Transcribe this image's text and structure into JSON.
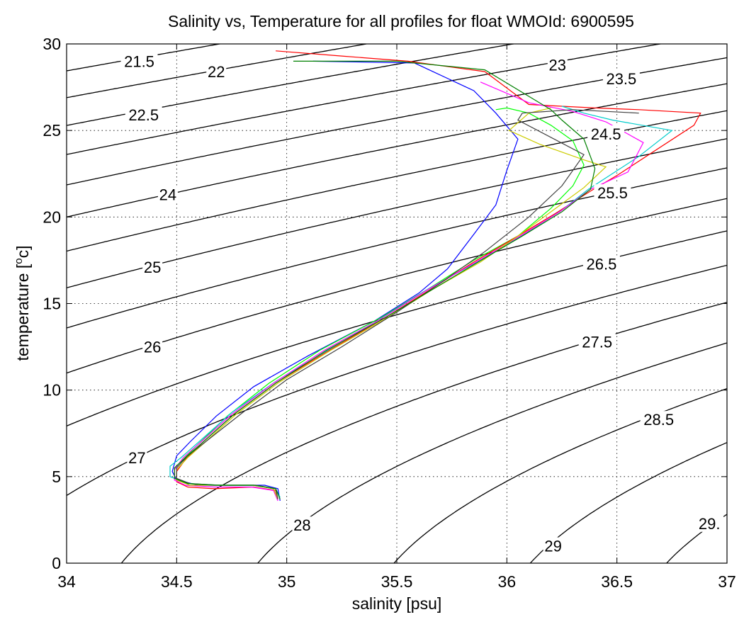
{
  "chart_data": {
    "type": "line",
    "title": "Salinity vs, Temperature for all profiles for float WMOId: 6900595",
    "xlabel": "salinity [psu]",
    "ylabel_main": "temperature [",
    "ylabel_sup": "o",
    "ylabel_end": "c]",
    "xlim": [
      34,
      37
    ],
    "ylim": [
      0,
      30
    ],
    "xticks": [
      34,
      34.5,
      35,
      35.5,
      36,
      36.5,
      37
    ],
    "xtick_labels": [
      "34",
      "34.5",
      "35",
      "35.5",
      "36",
      "36.5",
      "37"
    ],
    "yticks": [
      0,
      5,
      10,
      15,
      20,
      25,
      30
    ],
    "ytick_labels": [
      "0",
      "5",
      "10",
      "15",
      "20",
      "25",
      "30"
    ],
    "grid": true,
    "isopycnal_levels": [
      21.5,
      22,
      22.5,
      23,
      23.5,
      24,
      24.5,
      25,
      25.5,
      26,
      26.5,
      27,
      27.5,
      28,
      28.5,
      29,
      29.5
    ],
    "isopycnal_labels": [
      {
        "text": "21.5",
        "s": 34.33,
        "t": 29.0
      },
      {
        "text": "22",
        "s": 34.68,
        "t": 28.4
      },
      {
        "text": "22.5",
        "s": 34.35,
        "t": 25.9
      },
      {
        "text": "23",
        "s": 36.23,
        "t": 28.8
      },
      {
        "text": "23.5",
        "s": 36.52,
        "t": 28.0
      },
      {
        "text": "24",
        "s": 34.46,
        "t": 21.3
      },
      {
        "text": "24.5",
        "s": 36.45,
        "t": 24.8
      },
      {
        "text": "25",
        "s": 34.39,
        "t": 17.1
      },
      {
        "text": "25.5",
        "s": 36.48,
        "t": 21.4
      },
      {
        "text": "26",
        "s": 34.39,
        "t": 12.5
      },
      {
        "text": "26.5",
        "s": 36.43,
        "t": 17.3
      },
      {
        "text": "27",
        "s": 34.32,
        "t": 6.1
      },
      {
        "text": "27.5",
        "s": 36.41,
        "t": 12.8
      },
      {
        "text": "28",
        "s": 35.07,
        "t": 2.2
      },
      {
        "text": "28.5",
        "s": 36.69,
        "t": 8.3
      },
      {
        "text": "29",
        "s": 36.21,
        "t": 1.0
      },
      {
        "text": "29.",
        "s": 36.92,
        "t": 2.3
      }
    ],
    "series": [
      {
        "color": "#0000ff",
        "s": [
          34.97,
          34.96,
          34.9,
          34.75,
          34.6,
          34.5,
          34.48,
          34.5,
          34.56,
          34.68,
          34.85,
          35.1,
          35.4,
          35.6,
          35.73,
          35.85,
          35.95,
          36.0,
          36.05,
          35.95,
          35.85,
          35.58,
          35.12
        ],
        "t": [
          3.6,
          4.3,
          4.5,
          4.5,
          4.5,
          4.8,
          5.3,
          6.2,
          7.0,
          8.5,
          10.2,
          12.0,
          14.0,
          15.6,
          17.0,
          19.0,
          20.7,
          22.7,
          24.5,
          26.0,
          27.3,
          28.9,
          29.0
        ]
      },
      {
        "color": "#00ff00",
        "s": [
          34.96,
          34.94,
          34.85,
          34.7,
          34.55,
          34.49,
          34.49,
          34.53,
          34.6,
          34.73,
          34.92,
          35.15,
          35.43,
          35.65,
          35.85,
          36.05,
          36.2,
          36.3,
          36.35,
          36.3,
          36.2,
          36.1,
          36.0,
          35.95
        ],
        "t": [
          3.7,
          4.3,
          4.5,
          4.5,
          4.6,
          4.9,
          5.5,
          6.0,
          6.9,
          8.5,
          10.4,
          12.3,
          14.2,
          15.9,
          17.5,
          18.9,
          20.5,
          21.8,
          23.0,
          24.4,
          25.3,
          26.0,
          26.3,
          26.2
        ]
      },
      {
        "color": "#ff0000",
        "s": [
          34.96,
          34.95,
          34.85,
          34.67,
          34.55,
          34.5,
          34.5,
          34.54,
          34.62,
          34.76,
          34.95,
          35.18,
          35.45,
          35.65,
          35.85,
          36.05,
          36.22,
          36.38,
          36.5,
          36.85,
          36.88,
          36.6,
          36.4,
          36.25,
          36.1,
          35.9,
          35.55,
          35.25,
          34.95
        ],
        "t": [
          3.7,
          4.2,
          4.4,
          4.3,
          4.4,
          4.7,
          5.3,
          6.0,
          7.0,
          8.6,
          10.4,
          12.2,
          14.2,
          15.8,
          17.4,
          18.9,
          20.2,
          21.5,
          22.4,
          25.3,
          26.0,
          26.2,
          26.3,
          26.4,
          26.5,
          28.4,
          29.0,
          29.3,
          29.6
        ]
      },
      {
        "color": "#00cccc",
        "s": [
          34.97,
          34.95,
          34.85,
          34.68,
          34.55,
          34.47,
          34.47,
          34.52,
          34.6,
          34.75,
          34.95,
          35.2,
          35.45,
          35.65,
          35.88,
          36.08,
          36.25,
          36.37,
          36.6,
          36.75,
          36.48,
          36.35,
          36.25
        ],
        "t": [
          3.8,
          4.3,
          4.5,
          4.5,
          4.6,
          5.0,
          5.6,
          6.1,
          7.0,
          8.7,
          10.5,
          12.4,
          14.3,
          15.9,
          17.5,
          19.0,
          20.4,
          21.6,
          23.5,
          25.0,
          25.6,
          26.0,
          26.4
        ]
      },
      {
        "color": "#ff00ff",
        "s": [
          34.96,
          34.94,
          34.84,
          34.67,
          34.54,
          34.49,
          34.49,
          34.53,
          34.61,
          34.75,
          34.94,
          35.17,
          35.44,
          35.64,
          35.86,
          36.06,
          36.24,
          36.38,
          36.55,
          36.62,
          36.45,
          36.3,
          36.1,
          35.88
        ],
        "t": [
          3.6,
          4.2,
          4.4,
          4.4,
          4.5,
          4.8,
          5.4,
          6.1,
          7.0,
          8.6,
          10.4,
          12.3,
          14.2,
          15.8,
          17.4,
          18.9,
          20.3,
          21.6,
          22.6,
          24.3,
          25.5,
          26.1,
          26.6,
          27.8
        ]
      },
      {
        "color": "#cccc00",
        "s": [
          34.96,
          34.94,
          34.85,
          34.68,
          34.56,
          34.5,
          34.5,
          34.55,
          34.63,
          34.77,
          34.96,
          35.2,
          35.46,
          35.66,
          35.88,
          36.05,
          36.2,
          36.35,
          36.45,
          36.35,
          36.15,
          36.01,
          36.1,
          36.2
        ],
        "t": [
          3.7,
          4.3,
          4.5,
          4.5,
          4.5,
          4.8,
          5.4,
          6.1,
          7.0,
          8.6,
          10.4,
          12.3,
          14.2,
          15.8,
          17.4,
          18.9,
          20.3,
          21.7,
          22.9,
          23.3,
          24.2,
          25.0,
          26.0,
          26.3
        ]
      },
      {
        "color": "#404040",
        "s": [
          34.96,
          34.95,
          34.86,
          34.69,
          34.56,
          34.5,
          34.5,
          34.55,
          34.64,
          34.8,
          35.0,
          35.25,
          35.5,
          35.7,
          35.9,
          36.1,
          36.25,
          36.35,
          36.05,
          36.07,
          36.3,
          36.6
        ],
        "t": [
          3.7,
          4.3,
          4.5,
          4.5,
          4.6,
          4.9,
          5.5,
          6.2,
          7.1,
          8.7,
          10.6,
          12.5,
          14.5,
          16.2,
          18.0,
          20.0,
          21.8,
          23.6,
          25.6,
          26.0,
          26.2,
          26.0
        ]
      },
      {
        "color": "#008000",
        "s": [
          34.97,
          34.95,
          34.85,
          34.67,
          34.55,
          34.49,
          34.49,
          34.54,
          34.62,
          34.76,
          34.95,
          35.18,
          35.45,
          35.66,
          35.87,
          36.07,
          36.25,
          36.38,
          36.4,
          36.35,
          36.25,
          36.2,
          35.9,
          35.5,
          35.03
        ],
        "t": [
          3.7,
          4.3,
          4.5,
          4.5,
          4.6,
          4.9,
          5.5,
          6.1,
          7.0,
          8.6,
          10.4,
          12.3,
          14.2,
          15.8,
          17.4,
          18.9,
          20.3,
          21.6,
          22.8,
          24.5,
          25.6,
          26.2,
          28.5,
          29.0,
          29.0
        ]
      }
    ]
  }
}
